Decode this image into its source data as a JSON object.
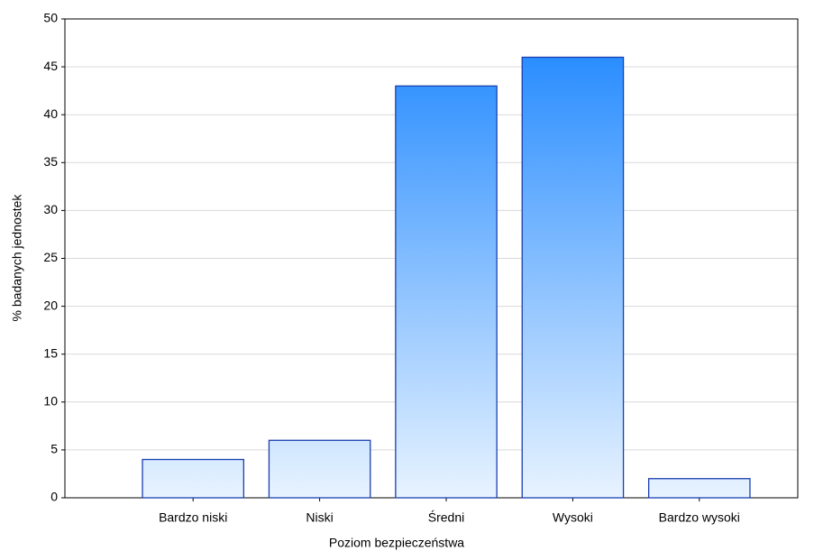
{
  "chart_data": {
    "type": "bar",
    "x_label": "Poziom bezpieczeństwa",
    "y_label": "% badanych jednostek",
    "categories": [
      "Bardzo niski",
      "Niski",
      "Średni",
      "Wysoki",
      "Bardzo wysoki"
    ],
    "values": [
      4,
      6,
      43,
      46,
      2
    ],
    "color": "#1a85ff",
    "ylim": [
      0,
      50
    ],
    "yticks": [
      0,
      5,
      10,
      15,
      20,
      25,
      30,
      35,
      40,
      45,
      50
    ],
    "grid": true
  }
}
